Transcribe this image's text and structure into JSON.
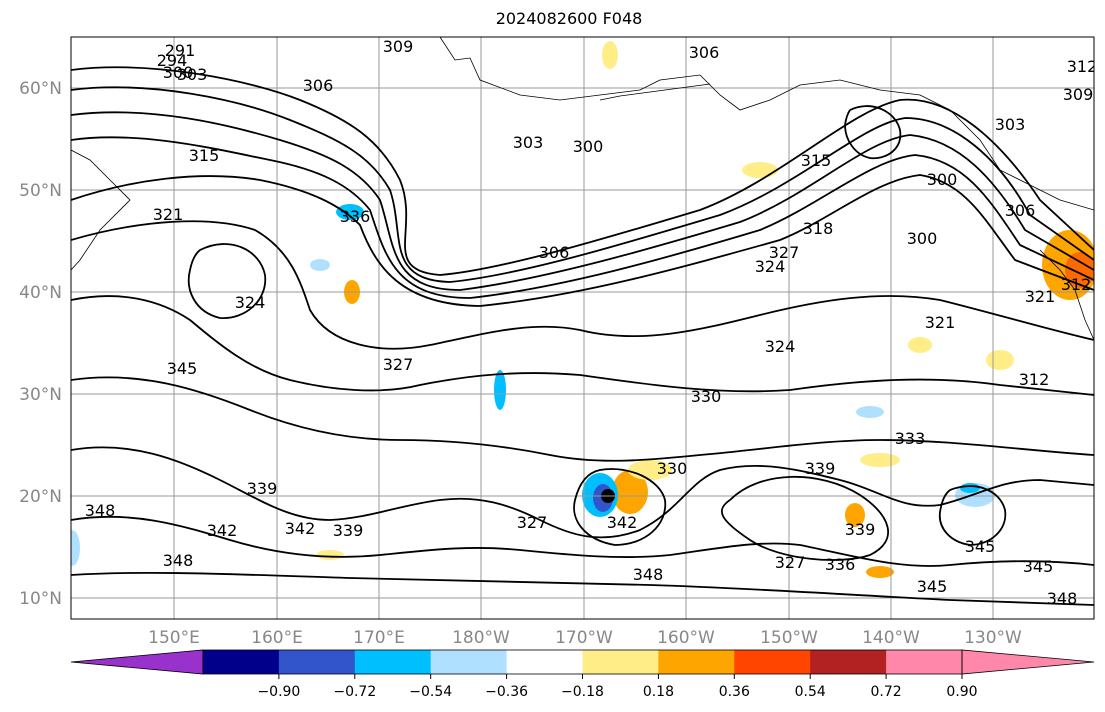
{
  "title": "2024082600 F048",
  "map": {
    "lat_labels": [
      "10°N",
      "20°N",
      "30°N",
      "40°N",
      "50°N",
      "60°N"
    ],
    "lon_labels": [
      "150°E",
      "160°E",
      "170°E",
      "180°W",
      "170°W",
      "160°W",
      "150°W",
      "140°W",
      "130°W"
    ],
    "gridlines": true,
    "contour_labels": [
      "291",
      "294",
      "300",
      "303",
      "306",
      "309",
      "306",
      "303",
      "300",
      "315",
      "321",
      "336",
      "306",
      "315",
      "318",
      "324",
      "327",
      "300",
      "306",
      "303",
      "309",
      "312",
      "300",
      "324",
      "321",
      "312",
      "321",
      "324",
      "327",
      "345",
      "330",
      "333",
      "339",
      "330",
      "327",
      "342",
      "342",
      "348",
      "348",
      "339",
      "339",
      "342",
      "345",
      "345",
      "348",
      "345",
      "336",
      "327",
      "348",
      "339",
      "312"
    ]
  },
  "colorbar": {
    "ticks": [
      "−0.90",
      "−0.72",
      "−0.54",
      "−0.36",
      "−0.18",
      "0.18",
      "0.36",
      "0.54",
      "0.72",
      "0.90"
    ],
    "colors": [
      "#9932cc",
      "#00008b",
      "#3355cc",
      "#00bfff",
      "#b0e0ff",
      "#ffffff",
      "#ffee88",
      "#ffa500",
      "#ff4500",
      "#b22222",
      "#ff88aa",
      "#ff88aa"
    ],
    "extend": "both"
  }
}
